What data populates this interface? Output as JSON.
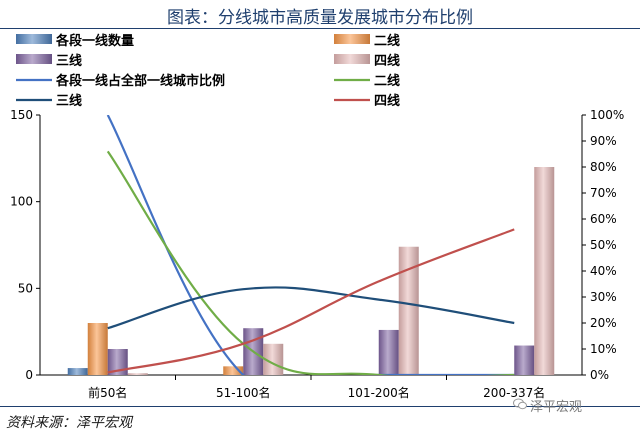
{
  "title": "图表：分线城市高质量发展城市分布比例",
  "source": "资料来源：泽平宏观",
  "watermark": "泽平宏观",
  "chart_data": {
    "type": "bar",
    "categories": [
      "前50名",
      "51-100名",
      "101-200名",
      "200-337名"
    ],
    "y_left": {
      "ylim": [
        0,
        150
      ],
      "ticks": [
        "0",
        "50",
        "100",
        "150"
      ]
    },
    "y_right": {
      "ylim": [
        0,
        100
      ],
      "ticks": [
        "0%",
        "10%",
        "20%",
        "30%",
        "40%",
        "50%",
        "60%",
        "70%",
        "80%",
        "90%",
        "100%"
      ]
    },
    "bar_series": [
      {
        "name": "各段一线数量",
        "color": "#4f81bd",
        "values": [
          4,
          0,
          0,
          0
        ]
      },
      {
        "name": "二线",
        "color": "#f79646",
        "values": [
          30,
          5,
          0,
          0
        ]
      },
      {
        "name": "三线",
        "color": "#8064a2",
        "values": [
          15,
          27,
          26,
          17
        ]
      },
      {
        "name": "四线",
        "color": "#e6b9b8",
        "values": [
          1,
          18,
          74,
          120
        ]
      }
    ],
    "line_series": [
      {
        "name": "各段一线占全部一线城市比例",
        "color": "#4472c4",
        "values_pct": [
          100,
          0,
          0,
          0
        ]
      },
      {
        "name": "二线",
        "color": "#70ad47",
        "values_pct": [
          86,
          12,
          0,
          0
        ]
      },
      {
        "name": "三线",
        "color": "#1f4e79",
        "values_pct": [
          18,
          33,
          29,
          20
        ]
      },
      {
        "name": "四线",
        "color": "#c0504d",
        "values_pct": [
          1,
          12,
          36,
          56
        ]
      }
    ],
    "legend_placement": "top",
    "grid": false
  }
}
